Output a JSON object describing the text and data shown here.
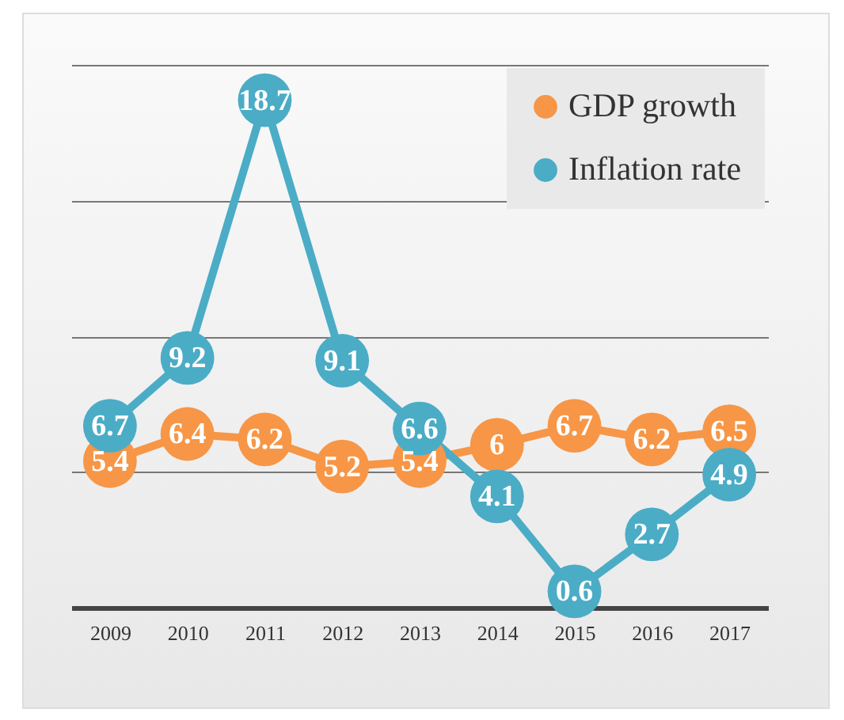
{
  "chart_data": {
    "type": "line",
    "categories": [
      "2009",
      "2010",
      "2011",
      "2012",
      "2013",
      "2014",
      "2015",
      "2016",
      "2017"
    ],
    "series": [
      {
        "name": "GDP growth",
        "color": "#f79646",
        "values": [
          5.4,
          6.4,
          6.2,
          5.2,
          5.4,
          6,
          6.7,
          6.2,
          6.5
        ]
      },
      {
        "name": "Inflation rate",
        "color": "#4bacc6",
        "values": [
          6.7,
          9.2,
          18.7,
          9.1,
          6.6,
          4.1,
          0.6,
          2.7,
          4.9
        ]
      }
    ],
    "ylim": [
      0,
      20
    ],
    "yticks": [
      {
        "value": 0,
        "label": null
      },
      {
        "value": 5,
        "label": null
      },
      {
        "value": 10,
        "label": null
      },
      {
        "value": 15,
        "label": null
      },
      {
        "value": 20,
        "label": null
      }
    ],
    "tick_labels": "x",
    "grid": "y",
    "legend": "top right",
    "marker": "circle",
    "line_style": "solid",
    "data_labels": true
  }
}
